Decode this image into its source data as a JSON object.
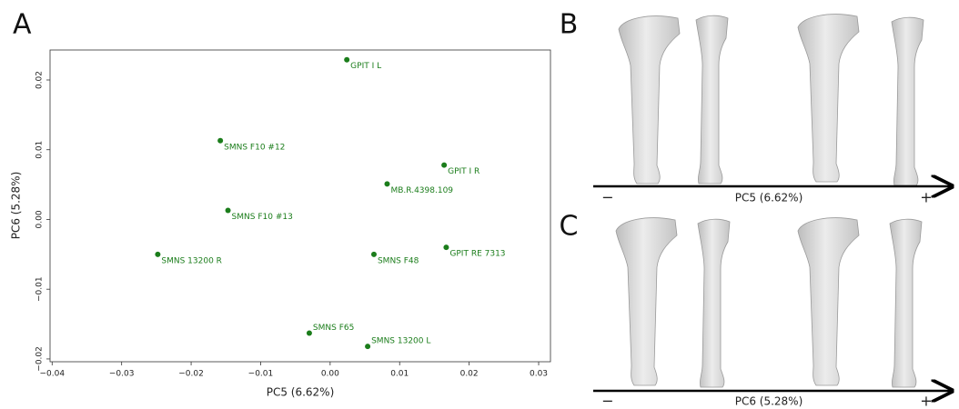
{
  "chart_data": {
    "type": "scatter",
    "panel_label": "A",
    "x_label": "PC5 (6.62%)",
    "y_label": "PC6 (5.28%)",
    "color": "#1b7d1b",
    "labels": [
      "GPIT I L",
      "SMNS F10 #12",
      "GPIT I R",
      "MB.R.4398.109",
      "SMNS F10 #13",
      "SMNS 13200 R",
      "SMNS F48",
      "GPIT RE 7313",
      "SMNS F65",
      "SMNS 13200 L"
    ],
    "x": [
      0.0024,
      -0.0158,
      0.0164,
      0.0082,
      -0.0147,
      -0.0248,
      0.0063,
      0.0167,
      -0.003,
      0.0054
    ],
    "y": [
      0.0229,
      0.0113,
      0.0078,
      0.0051,
      0.0013,
      -0.005,
      -0.005,
      -0.004,
      -0.0163,
      -0.0182
    ],
    "xlim": [
      -0.0403,
      0.0317
    ],
    "xticks": [
      {
        "value": -0.04,
        "label": "−0.04"
      },
      {
        "value": -0.03,
        "label": "−0.03"
      },
      {
        "value": -0.02,
        "label": "−0.02"
      },
      {
        "value": -0.01,
        "label": "−0.01"
      },
      {
        "value": 0,
        "label": "0.00"
      },
      0.01,
      0.02,
      0.03
    ],
    "ylim": [
      -0.0204,
      0.0243
    ],
    "yticks": [
      {
        "value": -0.02,
        "label": "−0.02"
      },
      {
        "value": -0.01,
        "label": "−0.01"
      },
      {
        "value": 0,
        "label": "0.00"
      },
      0.01,
      0.02
    ]
  },
  "panels": [
    {
      "label": "B",
      "axis_label": "PC5 (6.62%)",
      "minus": "−",
      "plus": "+"
    },
    {
      "label": "C",
      "axis_label": "PC6 (5.28%)",
      "minus": "−",
      "plus": "+"
    }
  ]
}
